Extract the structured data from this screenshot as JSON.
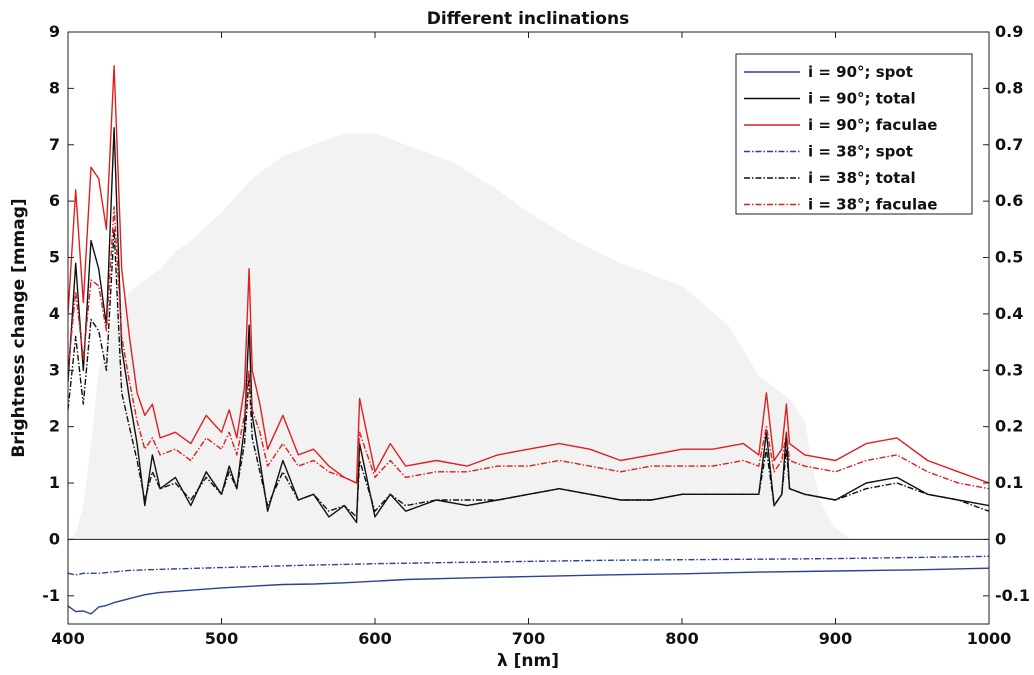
{
  "chart_data": {
    "type": "line",
    "title": "Different inclinations",
    "xlabel": "λ [nm]",
    "ylabel": "Brightness change [mmag]",
    "xlim": [
      400,
      1000
    ],
    "ylim": [
      -1.5,
      9
    ],
    "y2lim": [
      -0.15,
      0.9
    ],
    "x_ticks": [
      400,
      500,
      600,
      700,
      800,
      900,
      1000
    ],
    "y_ticks": [
      9,
      8,
      7,
      6,
      5,
      4,
      3,
      2,
      1,
      0,
      -1
    ],
    "y_tick_labels": [
      "9",
      "8",
      "7",
      "6",
      "5",
      "4",
      "3",
      "2",
      "1",
      "0",
      "-1"
    ],
    "y2_ticks": [
      0.9,
      0.8,
      0.7,
      0.6,
      0.5,
      0.4,
      0.3,
      0.2,
      0.1,
      0,
      -0.1
    ],
    "y2_tick_labels": [
      "0.9",
      "0.8",
      "0.7",
      "0.6",
      "0.5",
      "0.4",
      "0.3",
      "0.2",
      "0.1",
      "0",
      "-0.1"
    ],
    "grid": false,
    "legend_position": "top-right",
    "background_filter": {
      "axis": "right",
      "color": "#f2f2f2",
      "x": [
        400,
        405,
        410,
        415,
        420,
        430,
        440,
        450,
        460,
        470,
        480,
        500,
        520,
        540,
        560,
        580,
        600,
        620,
        650,
        680,
        700,
        730,
        760,
        800,
        830,
        850,
        860,
        870,
        880,
        885,
        890,
        895,
        900,
        905,
        910,
        920
      ],
      "y": [
        0,
        0.01,
        0.06,
        0.17,
        0.3,
        0.4,
        0.44,
        0.46,
        0.48,
        0.51,
        0.53,
        0.58,
        0.64,
        0.68,
        0.7,
        0.72,
        0.72,
        0.7,
        0.67,
        0.62,
        0.58,
        0.53,
        0.49,
        0.45,
        0.38,
        0.29,
        0.27,
        0.25,
        0.21,
        0.13,
        0.07,
        0.04,
        0.02,
        0.01,
        0,
        0
      ]
    },
    "series": [
      {
        "name": "i = 90°; spot",
        "color": "#2a3f9e",
        "dash": "solid",
        "x": [
          400,
          405,
          410,
          415,
          420,
          425,
          430,
          440,
          450,
          460,
          480,
          500,
          520,
          540,
          560,
          580,
          600,
          620,
          650,
          680,
          700,
          750,
          800,
          850,
          900,
          950,
          1000
        ],
        "y": [
          -1.18,
          -1.28,
          -1.27,
          -1.32,
          -1.2,
          -1.17,
          -1.12,
          -1.05,
          -0.98,
          -0.94,
          -0.9,
          -0.86,
          -0.83,
          -0.8,
          -0.79,
          -0.77,
          -0.74,
          -0.71,
          -0.69,
          -0.67,
          -0.66,
          -0.63,
          -0.61,
          -0.58,
          -0.56,
          -0.54,
          -0.51
        ]
      },
      {
        "name": "i = 90°; total",
        "color": "#111111",
        "dash": "solid",
        "x": [
          400,
          405,
          410,
          415,
          420,
          425,
          430,
          435,
          440,
          445,
          450,
          455,
          460,
          470,
          480,
          490,
          500,
          505,
          510,
          515,
          518,
          520,
          525,
          530,
          540,
          550,
          560,
          570,
          580,
          588,
          590,
          600,
          610,
          620,
          640,
          660,
          680,
          700,
          720,
          740,
          760,
          780,
          800,
          820,
          840,
          850,
          855,
          860,
          865,
          868,
          870,
          880,
          900,
          920,
          940,
          960,
          980,
          1000
        ],
        "y": [
          2.8,
          4.9,
          3.0,
          5.3,
          4.8,
          3.8,
          7.3,
          3.4,
          2.5,
          1.7,
          0.6,
          1.5,
          0.9,
          1.1,
          0.6,
          1.2,
          0.8,
          1.3,
          0.9,
          2.0,
          3.8,
          2.2,
          1.4,
          0.5,
          1.4,
          0.7,
          0.8,
          0.4,
          0.6,
          0.3,
          1.7,
          0.4,
          0.8,
          0.5,
          0.7,
          0.6,
          0.7,
          0.8,
          0.9,
          0.8,
          0.7,
          0.7,
          0.8,
          0.8,
          0.8,
          0.8,
          1.9,
          0.6,
          0.8,
          1.9,
          0.9,
          0.8,
          0.7,
          1.0,
          1.1,
          0.8,
          0.7,
          0.6
        ]
      },
      {
        "name": "i = 90°; faculae",
        "color": "#e02020",
        "dash": "solid",
        "x": [
          400,
          405,
          410,
          415,
          420,
          425,
          430,
          435,
          440,
          445,
          450,
          455,
          460,
          470,
          480,
          490,
          500,
          505,
          510,
          515,
          518,
          520,
          525,
          530,
          540,
          550,
          560,
          570,
          580,
          588,
          590,
          600,
          610,
          620,
          640,
          660,
          680,
          700,
          720,
          740,
          760,
          780,
          800,
          820,
          840,
          850,
          855,
          860,
          865,
          868,
          870,
          880,
          900,
          920,
          940,
          960,
          980,
          1000
        ],
        "y": [
          4.0,
          6.2,
          4.2,
          6.6,
          6.4,
          5.5,
          8.4,
          4.8,
          3.6,
          2.6,
          2.2,
          2.4,
          1.8,
          1.9,
          1.7,
          2.2,
          1.9,
          2.3,
          1.8,
          2.7,
          4.8,
          3.0,
          2.4,
          1.6,
          2.2,
          1.5,
          1.6,
          1.3,
          1.1,
          1.0,
          2.5,
          1.2,
          1.7,
          1.3,
          1.4,
          1.3,
          1.5,
          1.6,
          1.7,
          1.6,
          1.4,
          1.5,
          1.6,
          1.6,
          1.7,
          1.5,
          2.6,
          1.4,
          1.6,
          2.4,
          1.7,
          1.5,
          1.4,
          1.7,
          1.8,
          1.4,
          1.2,
          1.0
        ]
      },
      {
        "name": "i = 38°; spot",
        "color": "#2a3f9e",
        "dash": "dashdot",
        "x": [
          400,
          405,
          410,
          420,
          440,
          460,
          500,
          550,
          600,
          650,
          700,
          750,
          800,
          850,
          900,
          950,
          1000
        ],
        "y": [
          -0.6,
          -0.63,
          -0.6,
          -0.6,
          -0.55,
          -0.53,
          -0.5,
          -0.46,
          -0.43,
          -0.41,
          -0.39,
          -0.37,
          -0.36,
          -0.35,
          -0.34,
          -0.32,
          -0.3
        ]
      },
      {
        "name": "i = 38°; total",
        "color": "#111111",
        "dash": "dashdot",
        "x": [
          400,
          405,
          410,
          415,
          420,
          425,
          430,
          435,
          440,
          445,
          450,
          455,
          460,
          470,
          480,
          490,
          500,
          505,
          510,
          515,
          518,
          520,
          525,
          530,
          540,
          550,
          560,
          570,
          580,
          588,
          590,
          600,
          610,
          620,
          640,
          660,
          680,
          700,
          720,
          740,
          760,
          780,
          800,
          820,
          840,
          850,
          855,
          860,
          865,
          868,
          870,
          880,
          900,
          920,
          940,
          960,
          980,
          1000
        ],
        "y": [
          2.3,
          3.6,
          2.4,
          3.9,
          3.7,
          3.0,
          5.5,
          2.6,
          2.0,
          1.4,
          0.7,
          1.2,
          0.9,
          1.0,
          0.7,
          1.1,
          0.8,
          1.2,
          0.9,
          1.7,
          2.9,
          1.8,
          1.2,
          0.6,
          1.2,
          0.7,
          0.8,
          0.5,
          0.6,
          0.4,
          1.4,
          0.5,
          0.8,
          0.6,
          0.7,
          0.7,
          0.7,
          0.8,
          0.9,
          0.8,
          0.7,
          0.7,
          0.8,
          0.8,
          0.8,
          0.8,
          1.6,
          0.6,
          0.8,
          1.6,
          0.9,
          0.8,
          0.7,
          0.9,
          1.0,
          0.8,
          0.7,
          0.5
        ]
      },
      {
        "name": "i = 38°; faculae",
        "color": "#e02020",
        "dash": "dashdot",
        "x": [
          400,
          405,
          410,
          415,
          420,
          425,
          430,
          435,
          440,
          445,
          450,
          455,
          460,
          470,
          480,
          490,
          500,
          505,
          510,
          515,
          518,
          520,
          525,
          530,
          540,
          550,
          560,
          570,
          580,
          588,
          590,
          600,
          610,
          620,
          640,
          660,
          680,
          700,
          720,
          740,
          760,
          780,
          800,
          820,
          840,
          850,
          855,
          860,
          865,
          868,
          870,
          880,
          900,
          920,
          940,
          960,
          980,
          1000
        ],
        "y": [
          3.0,
          4.4,
          3.2,
          4.6,
          4.5,
          3.7,
          5.9,
          3.6,
          2.8,
          2.1,
          1.6,
          1.8,
          1.5,
          1.6,
          1.4,
          1.8,
          1.6,
          1.9,
          1.5,
          2.2,
          3.0,
          2.3,
          1.9,
          1.3,
          1.7,
          1.3,
          1.4,
          1.2,
          1.1,
          1.0,
          1.9,
          1.1,
          1.4,
          1.1,
          1.2,
          1.2,
          1.3,
          1.3,
          1.4,
          1.3,
          1.2,
          1.3,
          1.3,
          1.3,
          1.4,
          1.3,
          2.0,
          1.2,
          1.4,
          1.9,
          1.4,
          1.3,
          1.2,
          1.4,
          1.5,
          1.2,
          1.0,
          0.9
        ]
      }
    ]
  }
}
